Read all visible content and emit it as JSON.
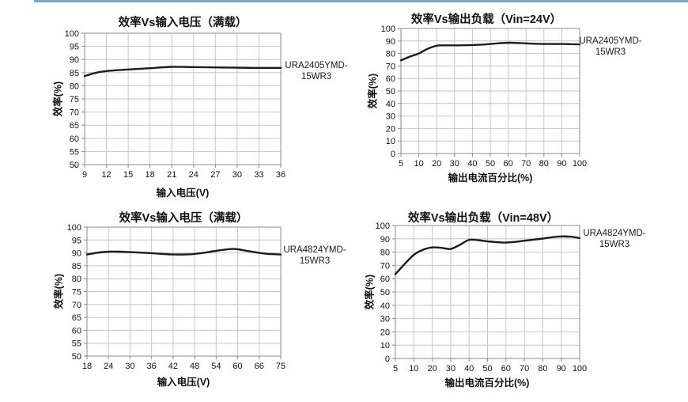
{
  "page": {
    "background": "#ffffff",
    "accent_bar_color": "#74aacf",
    "grid_color": "#c6c6c6",
    "plot_border_color": "#8a8a8a",
    "curve_color": "#1c1c1c"
  },
  "chart_data": [
    {
      "type": "line",
      "title": "效率Vs输入电压（满载）",
      "xlabel": "输入电压(V)",
      "ylabel": "效率(%)",
      "legend_label": "URA2405YMD-15WR3",
      "label_lines": [
        "URA2405YMD-",
        "15WR3"
      ],
      "x_tick_labels": [
        "9",
        "12",
        "15",
        "18",
        "21",
        "24",
        "27",
        "30",
        "33",
        "36"
      ],
      "ylim": [
        50,
        100
      ],
      "y_tick_step": 5,
      "grid": true,
      "legend_position": "right",
      "points": [
        [
          9,
          83.7
        ],
        [
          10.5,
          84.9
        ],
        [
          12,
          85.6
        ],
        [
          15,
          86.2
        ],
        [
          18,
          86.7
        ],
        [
          21,
          87.2
        ],
        [
          24,
          87.1
        ],
        [
          27,
          87.0
        ],
        [
          30,
          86.9
        ],
        [
          33,
          86.8
        ],
        [
          36,
          86.8
        ]
      ]
    },
    {
      "type": "line",
      "title": "效率Vs输出负载（Vin=24V）",
      "xlabel": "输出电流百分比(%)",
      "ylabel": "效率(%)",
      "legend_label": "URA2405YMD-15WR3",
      "label_lines": [
        "URA2405YMD-",
        "15WR3"
      ],
      "x_tick_labels": [
        "5",
        "10",
        "20",
        "30",
        "40",
        "50",
        "60",
        "70",
        "80",
        "90",
        "100"
      ],
      "ylim": [
        0,
        100
      ],
      "y_tick_step": 10,
      "grid": true,
      "legend_position": "right",
      "points": [
        [
          5,
          74.5
        ],
        [
          7.5,
          77.5
        ],
        [
          10,
          80.0
        ],
        [
          15,
          83.8
        ],
        [
          20,
          86.2
        ],
        [
          25,
          86.5
        ],
        [
          30,
          86.5
        ],
        [
          35,
          86.6
        ],
        [
          40,
          86.8
        ],
        [
          45,
          87.1
        ],
        [
          50,
          87.6
        ],
        [
          55,
          88.2
        ],
        [
          60,
          88.6
        ],
        [
          65,
          88.4
        ],
        [
          70,
          88.1
        ],
        [
          75,
          87.8
        ],
        [
          80,
          87.6
        ],
        [
          85,
          87.6
        ],
        [
          90,
          87.6
        ],
        [
          95,
          87.5
        ],
        [
          100,
          87.3
        ]
      ]
    },
    {
      "type": "line",
      "title": "效率Vs输入电压（满载）",
      "xlabel": "输入电压(V)",
      "ylabel": "效率(%)",
      "legend_label": "URA4824YMD-15WR3",
      "label_lines": [
        "URA4824YMD-",
        "15WR3"
      ],
      "x_tick_labels": [
        "18",
        "24",
        "30",
        "36",
        "42",
        "48",
        "54",
        "60",
        "66",
        "75"
      ],
      "ylim": [
        50,
        100
      ],
      "y_tick_step": 5,
      "grid": true,
      "legend_position": "right",
      "points": [
        [
          18,
          89.4
        ],
        [
          21,
          90.1
        ],
        [
          24,
          90.5
        ],
        [
          27,
          90.5
        ],
        [
          30,
          90.3
        ],
        [
          36,
          89.9
        ],
        [
          42,
          89.4
        ],
        [
          48,
          89.6
        ],
        [
          54,
          90.8
        ],
        [
          58,
          91.5
        ],
        [
          60,
          91.4
        ],
        [
          63,
          90.7
        ],
        [
          66,
          90.0
        ],
        [
          70,
          89.6
        ],
        [
          75,
          89.4
        ]
      ]
    },
    {
      "type": "line",
      "title": "效率Vs输出负载（Vin=48V）",
      "xlabel": "输出电流百分比(%)",
      "ylabel": "效率(%)",
      "legend_label": "URA4824YMD-15WR3",
      "label_lines": [
        "URA4824YMD-",
        "15WR3"
      ],
      "x_tick_labels": [
        "5",
        "10",
        "20",
        "30",
        "40",
        "50",
        "60",
        "70",
        "80",
        "90",
        "100"
      ],
      "ylim": [
        0,
        100
      ],
      "y_tick_step": 10,
      "grid": true,
      "legend_position": "right",
      "points": [
        [
          5,
          63.5
        ],
        [
          7.5,
          71.0
        ],
        [
          10,
          78.0
        ],
        [
          15,
          81.8
        ],
        [
          20,
          83.5
        ],
        [
          25,
          83.2
        ],
        [
          30,
          82.4
        ],
        [
          35,
          85.5
        ],
        [
          40,
          89.2
        ],
        [
          45,
          89.0
        ],
        [
          50,
          88.1
        ],
        [
          55,
          87.5
        ],
        [
          60,
          87.2
        ],
        [
          65,
          87.7
        ],
        [
          70,
          88.6
        ],
        [
          75,
          89.4
        ],
        [
          80,
          90.2
        ],
        [
          85,
          91.2
        ],
        [
          90,
          91.8
        ],
        [
          95,
          91.6
        ],
        [
          100,
          90.6
        ]
      ]
    }
  ]
}
